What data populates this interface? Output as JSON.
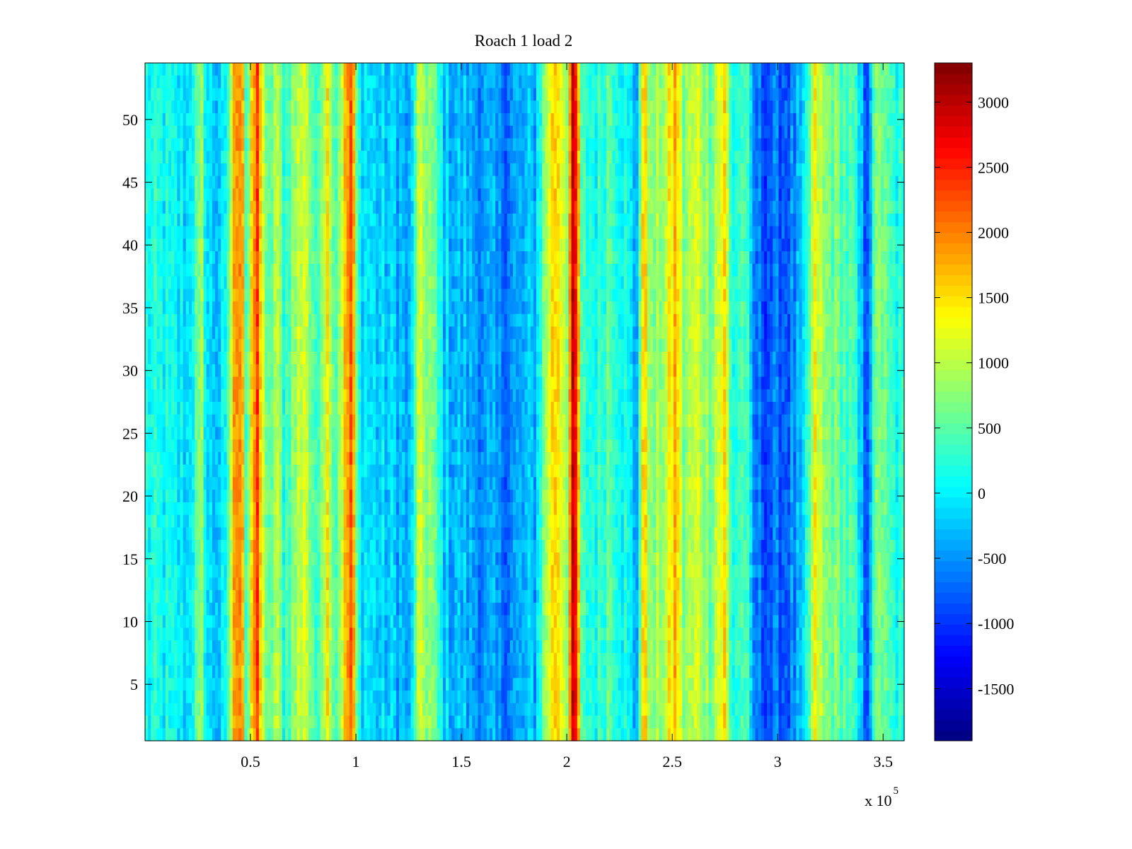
{
  "chart_data": {
    "type": "heatmap",
    "title": "Roach 1 load 2",
    "xlabel": "",
    "ylabel": "",
    "x_multiplier_label": "x 10",
    "x_multiplier_exponent": "5",
    "xlim": [
      0.0,
      3.6
    ],
    "ylim": [
      0.5,
      54.5
    ],
    "xticks": [
      0.5,
      1,
      1.5,
      2,
      2.5,
      3,
      3.5
    ],
    "xtick_labels": [
      "0.5",
      "1",
      "1.5",
      "2",
      "2.5",
      "3",
      "3.5"
    ],
    "yticks": [
      5,
      10,
      15,
      20,
      25,
      30,
      35,
      40,
      45,
      50
    ],
    "ytick_labels": [
      "5",
      "10",
      "15",
      "20",
      "25",
      "30",
      "35",
      "40",
      "45",
      "50"
    ],
    "rows": 54,
    "colormap": "jet",
    "colorbar": {
      "clim": [
        -1900,
        3300
      ],
      "ticks": [
        -1500,
        -1000,
        -500,
        0,
        500,
        1000,
        1500,
        2000,
        2500,
        3000
      ],
      "tick_labels": [
        "-1500",
        "-1000",
        "-500",
        "0",
        "500",
        "1000",
        "1500",
        "2000",
        "2500",
        "3000"
      ],
      "levels": 64
    },
    "column_profile": {
      "description_units": "x in units of 10^5, value in colorbar units",
      "bands": [
        {
          "x": 0.0,
          "v": 150
        },
        {
          "x": 0.1,
          "v": 50
        },
        {
          "x": 0.2,
          "v": -100
        },
        {
          "x": 0.27,
          "v": 700
        },
        {
          "x": 0.3,
          "v": -200
        },
        {
          "x": 0.38,
          "v": -150
        },
        {
          "x": 0.43,
          "v": 2000
        },
        {
          "x": 0.46,
          "v": 2200
        },
        {
          "x": 0.48,
          "v": 200
        },
        {
          "x": 0.53,
          "v": 2400
        },
        {
          "x": 0.55,
          "v": 1600
        },
        {
          "x": 0.58,
          "v": 200
        },
        {
          "x": 0.62,
          "v": 1000
        },
        {
          "x": 0.66,
          "v": 300
        },
        {
          "x": 0.72,
          "v": 900
        },
        {
          "x": 0.76,
          "v": 1300
        },
        {
          "x": 0.8,
          "v": 200
        },
        {
          "x": 0.87,
          "v": 1500
        },
        {
          "x": 0.9,
          "v": 400
        },
        {
          "x": 0.96,
          "v": 1800
        },
        {
          "x": 0.98,
          "v": 2300
        },
        {
          "x": 1.01,
          "v": 100
        },
        {
          "x": 1.1,
          "v": -200
        },
        {
          "x": 1.2,
          "v": -250
        },
        {
          "x": 1.26,
          "v": -500
        },
        {
          "x": 1.29,
          "v": 900
        },
        {
          "x": 1.35,
          "v": 800
        },
        {
          "x": 1.42,
          "v": -200
        },
        {
          "x": 1.55,
          "v": -400
        },
        {
          "x": 1.7,
          "v": -600
        },
        {
          "x": 1.85,
          "v": -300
        },
        {
          "x": 1.92,
          "v": 1300
        },
        {
          "x": 1.95,
          "v": 1700
        },
        {
          "x": 2.0,
          "v": 900
        },
        {
          "x": 2.03,
          "v": 2800
        },
        {
          "x": 2.05,
          "v": 2300
        },
        {
          "x": 2.07,
          "v": 300
        },
        {
          "x": 2.15,
          "v": 200
        },
        {
          "x": 2.2,
          "v": 600
        },
        {
          "x": 2.28,
          "v": 100
        },
        {
          "x": 2.33,
          "v": -400
        },
        {
          "x": 2.37,
          "v": 1800
        },
        {
          "x": 2.4,
          "v": 600
        },
        {
          "x": 2.47,
          "v": 1000
        },
        {
          "x": 2.52,
          "v": 1800
        },
        {
          "x": 2.55,
          "v": 700
        },
        {
          "x": 2.62,
          "v": 1100
        },
        {
          "x": 2.68,
          "v": 700
        },
        {
          "x": 2.75,
          "v": 1500
        },
        {
          "x": 2.78,
          "v": 200
        },
        {
          "x": 2.85,
          "v": 500
        },
        {
          "x": 2.88,
          "v": -600
        },
        {
          "x": 2.95,
          "v": -800
        },
        {
          "x": 3.05,
          "v": -700
        },
        {
          "x": 3.12,
          "v": -400
        },
        {
          "x": 3.18,
          "v": 1300
        },
        {
          "x": 3.22,
          "v": 700
        },
        {
          "x": 3.28,
          "v": 600
        },
        {
          "x": 3.36,
          "v": 300
        },
        {
          "x": 3.42,
          "v": -800
        },
        {
          "x": 3.48,
          "v": 900
        },
        {
          "x": 3.52,
          "v": 300
        },
        {
          "x": 3.6,
          "v": 100
        }
      ]
    }
  }
}
